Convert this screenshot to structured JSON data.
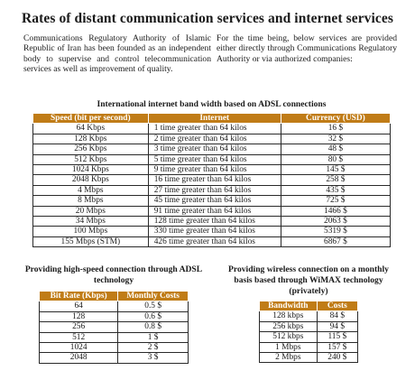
{
  "title": "Rates of distant communication services and internet services",
  "intro": {
    "left": "Communications Regulatory Authority of Islamic Republic of Iran has been founded as an independent body to supervise and control telecommunication services as well as improvement of quality.",
    "right": "For the time being, below services are provided either directly through Communications Regulatory Authority or via authorized companies:"
  },
  "bandwidth": {
    "title": "International internet band width based on ADSL connections",
    "headers": [
      "Speed (bit per second)",
      "Internet",
      "Currency (USD)"
    ],
    "rows": [
      [
        "64 Kbps",
        "1 time greater than 64 kilos",
        "16 $"
      ],
      [
        "128 Kbps",
        "2 time greater than 64 kilos",
        "32 $"
      ],
      [
        "256 Kbps",
        "3 time greater than 64 kilos",
        "48 $"
      ],
      [
        "512 Kbps",
        "5 time greater than 64 kilos",
        "80 $"
      ],
      [
        "1024 Kbps",
        "9 time greater than 64 kilos",
        "145 $"
      ],
      [
        "2048 Kbps",
        "16 time greater than 64 kilos",
        "258 $"
      ],
      [
        "4 Mbps",
        "27 time greater than 64 kilos",
        "435 $"
      ],
      [
        "8 Mbps",
        "45 time greater than 64 kilos",
        "725 $"
      ],
      [
        "20 Mbps",
        "91 time greater than 64 kilos",
        "1466 $"
      ],
      [
        "34 Mbps",
        "128 time greater than 64 kilos",
        "2063 $"
      ],
      [
        "100 Mbps",
        "330 time greater than 64 kilos",
        "5319 $"
      ],
      [
        "155 Mbps (STM)",
        "426 time greater than 64 kilos",
        "6867 $"
      ]
    ]
  },
  "adsl": {
    "title": "Providing high-speed connection through ADSL technology",
    "headers": [
      "Bit Rate (Kbps)",
      "Monthly Costs"
    ],
    "rows": [
      [
        "64",
        "0.5 $"
      ],
      [
        "128",
        "0.6 $"
      ],
      [
        "256",
        "0.8 $"
      ],
      [
        "512",
        "1 $"
      ],
      [
        "1024",
        "2 $"
      ],
      [
        "2048",
        "3 $"
      ]
    ]
  },
  "wimax": {
    "title": "Providing wireless connection on a monthly basis based through WiMAX technology (privately)",
    "headers": [
      "Bandwidth",
      "Costs"
    ],
    "rows": [
      [
        "128 kbps",
        "84 $"
      ],
      [
        "256 kbps",
        "94 $"
      ],
      [
        "512 kbps",
        "115 $"
      ],
      [
        "1 Mbps",
        "157 $"
      ],
      [
        "2 Mbps",
        "240 $"
      ]
    ]
  },
  "colors": {
    "header_bg": "#c07c17",
    "header_text": "#ffffff",
    "border": "#2a2a2a"
  }
}
